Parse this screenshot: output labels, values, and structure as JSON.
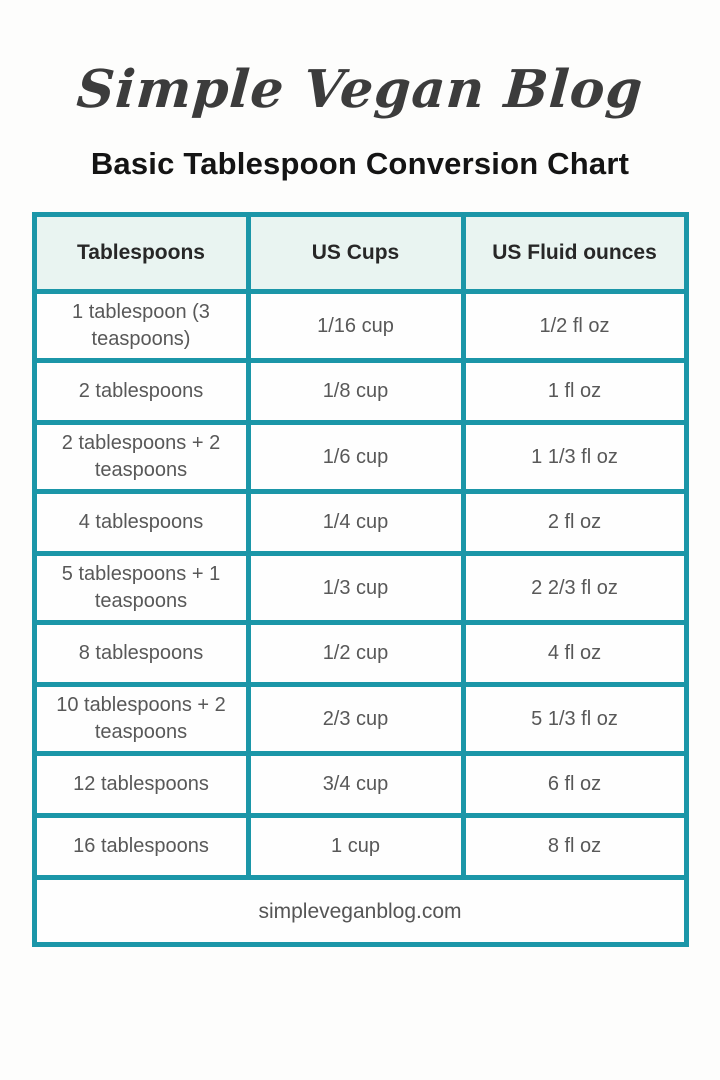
{
  "page": {
    "background": "#fdfdfc"
  },
  "logo": {
    "text": "Simple Vegan Blog",
    "color": "#3c3c3c"
  },
  "title": "Basic Tablespoon Conversion Chart",
  "table": {
    "border_color": "#1b96a8",
    "header_bg": "#e9f4f1",
    "headers": [
      "Tablespoons",
      "US Cups",
      "US Fluid ounces"
    ],
    "rows": [
      [
        "1 tablespoon (3 teaspoons)",
        "1/16 cup",
        "1/2 fl oz"
      ],
      [
        "2 tablespoons",
        "1/8 cup",
        "1 fl oz"
      ],
      [
        "2 tablespoons + 2 teaspoons",
        "1/6 cup",
        "1 1/3 fl oz"
      ],
      [
        "4 tablespoons",
        "1/4 cup",
        "2 fl oz"
      ],
      [
        "5 tablespoons + 1 teaspoons",
        "1/3 cup",
        "2 2/3 fl oz"
      ],
      [
        "8 tablespoons",
        "1/2 cup",
        "4 fl oz"
      ],
      [
        "10 tablespoons + 2 teaspoons",
        "2/3 cup",
        "5 1/3 fl oz"
      ],
      [
        "12 tablespoons",
        "3/4 cup",
        "6 fl oz"
      ],
      [
        "16 tablespoons",
        "1 cup",
        "8 fl oz"
      ]
    ],
    "footer": "simpleveganblog.com"
  }
}
